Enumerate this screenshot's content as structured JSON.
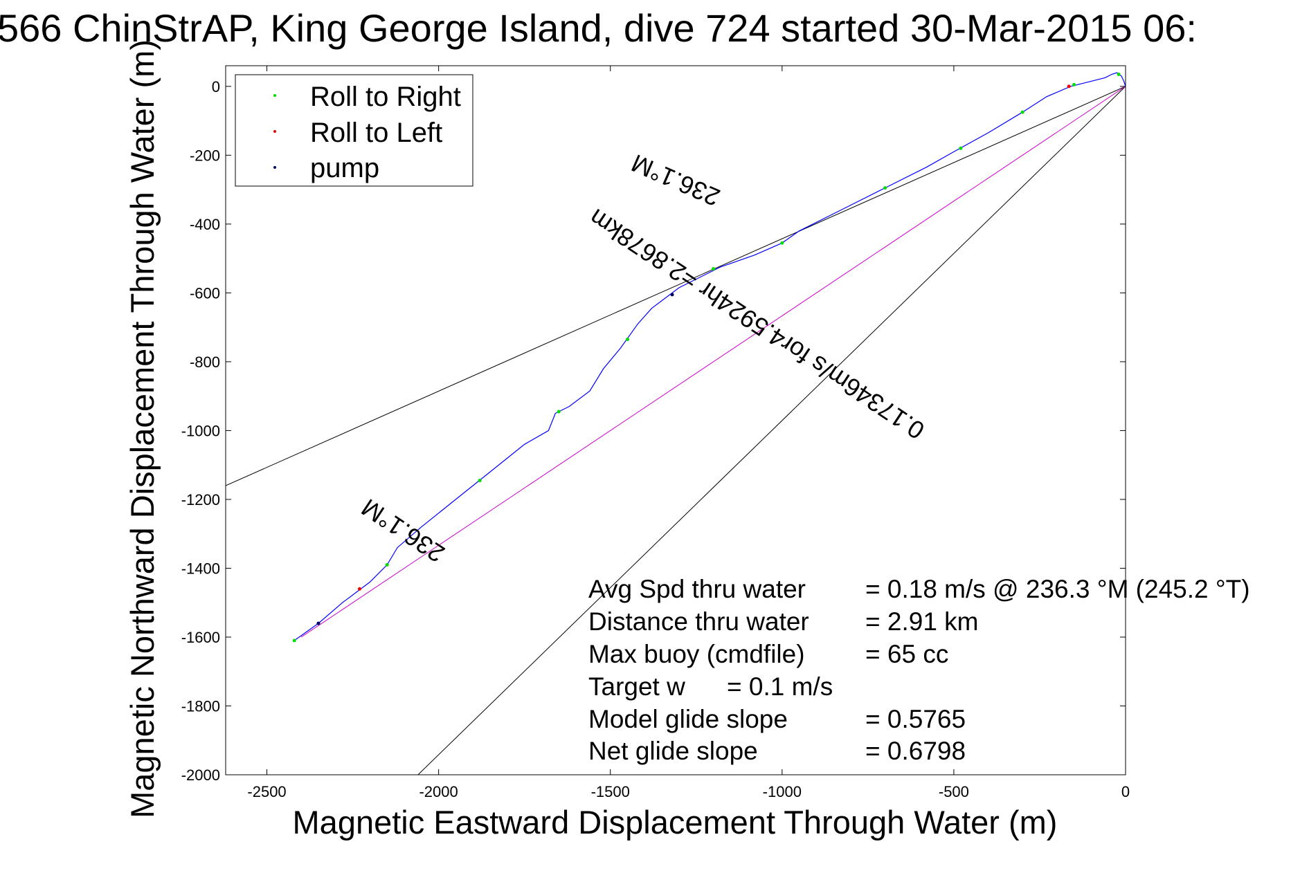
{
  "chart_data": {
    "type": "line",
    "title": "566 ChinStrAP, King George Island, dive 724 started 30-Mar-2015 06:",
    "xlabel": "Magnetic Eastward Displacement Through Water (m)",
    "ylabel": "Magnetic Northward Displacement Through Water (m)",
    "xlim": [
      -2620,
      0
    ],
    "ylim": [
      -2000,
      60
    ],
    "grid": false,
    "x_ticks": [
      -2500,
      -2000,
      -1500,
      -1000,
      -500,
      0
    ],
    "y_ticks": [
      0,
      -200,
      -400,
      -600,
      -800,
      -1000,
      -1200,
      -1400,
      -1600,
      -1800,
      -2000
    ],
    "x_tick_labels": [
      "-2500",
      "-2000",
      "-1500",
      "-1000",
      "-500",
      "0"
    ],
    "y_tick_labels": [
      "0",
      "-200",
      "-400",
      "-600",
      "-800",
      "-1000",
      "-1200",
      "-1400",
      "-1600",
      "-1800",
      "-2000"
    ],
    "legend_position": "top-left",
    "legend": [
      {
        "label": "Roll to Right",
        "color": "#00dd00"
      },
      {
        "label": "Roll to Left",
        "color": "#ee0000"
      },
      {
        "label": "pump",
        "color": "#000066"
      }
    ],
    "track": {
      "name": "glider track",
      "color": "#0000ff",
      "points": [
        [
          0,
          0
        ],
        [
          -5,
          15
        ],
        [
          -12,
          30
        ],
        [
          -25,
          40
        ],
        [
          -40,
          35
        ],
        [
          -60,
          25
        ],
        [
          -100,
          15
        ],
        [
          -160,
          0
        ],
        [
          -230,
          -30
        ],
        [
          -300,
          -75
        ],
        [
          -400,
          -135
        ],
        [
          -500,
          -190
        ],
        [
          -580,
          -235
        ],
        [
          -700,
          -295
        ],
        [
          -820,
          -355
        ],
        [
          -950,
          -420
        ],
        [
          -1000,
          -455
        ],
        [
          -1080,
          -490
        ],
        [
          -1180,
          -525
        ],
        [
          -1300,
          -585
        ],
        [
          -1340,
          -615
        ],
        [
          -1380,
          -645
        ],
        [
          -1420,
          -690
        ],
        [
          -1470,
          -760
        ],
        [
          -1520,
          -820
        ],
        [
          -1560,
          -885
        ],
        [
          -1620,
          -930
        ],
        [
          -1660,
          -950
        ],
        [
          -1680,
          -1000
        ],
        [
          -1750,
          -1040
        ],
        [
          -1850,
          -1120
        ],
        [
          -1950,
          -1200
        ],
        [
          -2050,
          -1280
        ],
        [
          -2120,
          -1340
        ],
        [
          -2150,
          -1390
        ],
        [
          -2200,
          -1440
        ],
        [
          -2280,
          -1500
        ],
        [
          -2350,
          -1560
        ],
        [
          -2420,
          -1610
        ]
      ],
      "markers": [
        {
          "kind": "right",
          "x": -20,
          "y": 35
        },
        {
          "kind": "right",
          "x": -150,
          "y": 5
        },
        {
          "kind": "left",
          "x": -165,
          "y": 0
        },
        {
          "kind": "right",
          "x": -300,
          "y": -75
        },
        {
          "kind": "right",
          "x": -480,
          "y": -180
        },
        {
          "kind": "right",
          "x": -700,
          "y": -295
        },
        {
          "kind": "right",
          "x": -1000,
          "y": -455
        },
        {
          "kind": "right",
          "x": -1200,
          "y": -530
        },
        {
          "kind": "pump",
          "x": -1320,
          "y": -605
        },
        {
          "kind": "right",
          "x": -1450,
          "y": -735
        },
        {
          "kind": "right",
          "x": -1650,
          "y": -945
        },
        {
          "kind": "right",
          "x": -1880,
          "y": -1145
        },
        {
          "kind": "right",
          "x": -2150,
          "y": -1390
        },
        {
          "kind": "left",
          "x": -2230,
          "y": -1460
        },
        {
          "kind": "pump",
          "x": -2350,
          "y": -1560
        },
        {
          "kind": "right",
          "x": -2420,
          "y": -1610
        }
      ]
    },
    "reference_lines": [
      {
        "name": "upper heading line",
        "color": "#000000",
        "from": [
          0,
          0
        ],
        "to": [
          -2620,
          -1160
        ]
      },
      {
        "name": "lower heading line",
        "color": "#000000",
        "from": [
          0,
          0
        ],
        "to": [
          -2060,
          -2000
        ]
      },
      {
        "name": "net displacement line",
        "color": "#cc00cc",
        "from": [
          0,
          0
        ],
        "to": [
          -2400,
          -1600
        ]
      }
    ],
    "annotations": [
      {
        "text": "236.1°M",
        "x": -1300,
        "y": -250,
        "angle": 203.5
      },
      {
        "text": "0.17346m/s for4.5924hr =2.8678km",
        "x": -1060,
        "y": -670,
        "angle": 213.5
      },
      {
        "text": "236.1°M",
        "x": -2090,
        "y": -1270,
        "angle": 213.5
      }
    ],
    "summary": [
      {
        "label": "Avg Spd thru water",
        "value": "=  0.18 m/s @ 236.3 °M (245.2 °T)"
      },
      {
        "label": "Distance thru water",
        "value": "=  2.91 km"
      },
      {
        "label": "Max buoy (cmdfile)",
        "value": "= 65 cc"
      },
      {
        "label": "Target w",
        "value": "= 0.1 m/s"
      },
      {
        "label": "Model glide slope",
        "value": "= 0.5765"
      },
      {
        "label": "Net glide slope",
        "value": "= 0.6798"
      }
    ]
  }
}
